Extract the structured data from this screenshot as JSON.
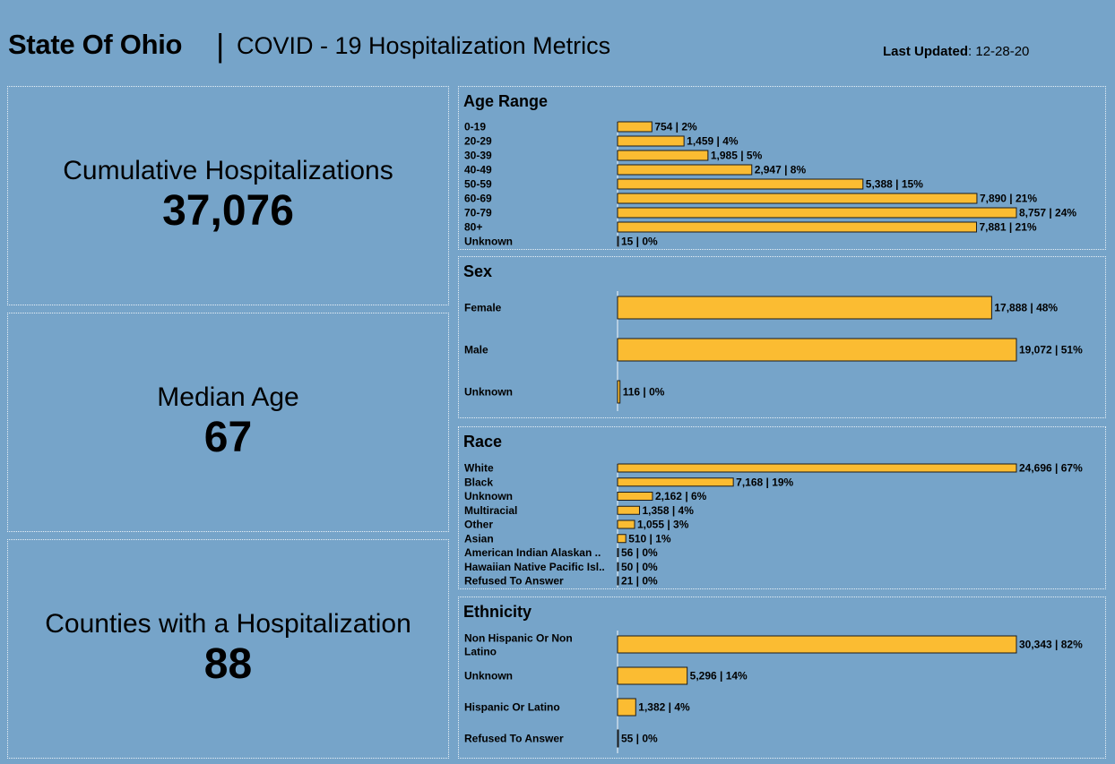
{
  "header": {
    "title_main": "State Of Ohio",
    "title_sep": "|",
    "title_sub": "COVID - 19 Hospitalization Metrics",
    "updated_label": "Last Updated",
    "updated_value": ": 12-28-20"
  },
  "kpis": [
    {
      "label": "Cumulative Hospitalizations",
      "value": "37,076"
    },
    {
      "label": "Median Age",
      "value": "67"
    },
    {
      "label": "Counties with a Hospitalization",
      "value": "88"
    }
  ],
  "colors": {
    "bar": "#fbbc32",
    "bar_stroke": "#1a1a1a",
    "background": "#76a4c9",
    "border": "#e9f1f7"
  },
  "chart_data": [
    {
      "type": "bar",
      "orientation": "horizontal",
      "title": "Age Range",
      "categories": [
        "0-19",
        "20-29",
        "30-39",
        "40-49",
        "50-59",
        "60-69",
        "70-79",
        "80+",
        "Unknown"
      ],
      "values": [
        754,
        1459,
        1985,
        2947,
        5388,
        7890,
        8757,
        7881,
        15
      ],
      "labels": [
        "754 | 2%",
        "1,459 | 4%",
        "1,985 | 5%",
        "2,947 | 8%",
        "5,388 | 15%",
        "7,890 | 21%",
        "8,757 | 24%",
        "7,881 | 21%",
        "15 | 0%"
      ]
    },
    {
      "type": "bar",
      "orientation": "horizontal",
      "title": "Sex",
      "categories": [
        "Female",
        "Male",
        "Unknown"
      ],
      "values": [
        17888,
        19072,
        116
      ],
      "labels": [
        "17,888 | 48%",
        "19,072 | 51%",
        "116 | 0%"
      ]
    },
    {
      "type": "bar",
      "orientation": "horizontal",
      "title": "Race",
      "categories": [
        "White",
        "Black",
        "Unknown",
        "Multiracial",
        "Other",
        "Asian",
        "American Indian Alaskan ..",
        "Hawaiian Native Pacific Isl..",
        "Refused To Answer"
      ],
      "values": [
        24696,
        7168,
        2162,
        1358,
        1055,
        510,
        56,
        50,
        21
      ],
      "labels": [
        "24,696 | 67%",
        "7,168 | 19%",
        "2,162 | 6%",
        "1,358 | 4%",
        "1,055 | 3%",
        "510 | 1%",
        "56 | 0%",
        "50 | 0%",
        "21 | 0%"
      ]
    },
    {
      "type": "bar",
      "orientation": "horizontal",
      "title": "Ethnicity",
      "categories": [
        "Non Hispanic Or Non Latino",
        "Unknown",
        "Hispanic Or Latino",
        "Refused To Answer"
      ],
      "values": [
        30343,
        5296,
        1382,
        55
      ],
      "labels": [
        "30,343 | 82%",
        "5,296 | 14%",
        "1,382 | 4%",
        "55 | 0%"
      ]
    }
  ]
}
